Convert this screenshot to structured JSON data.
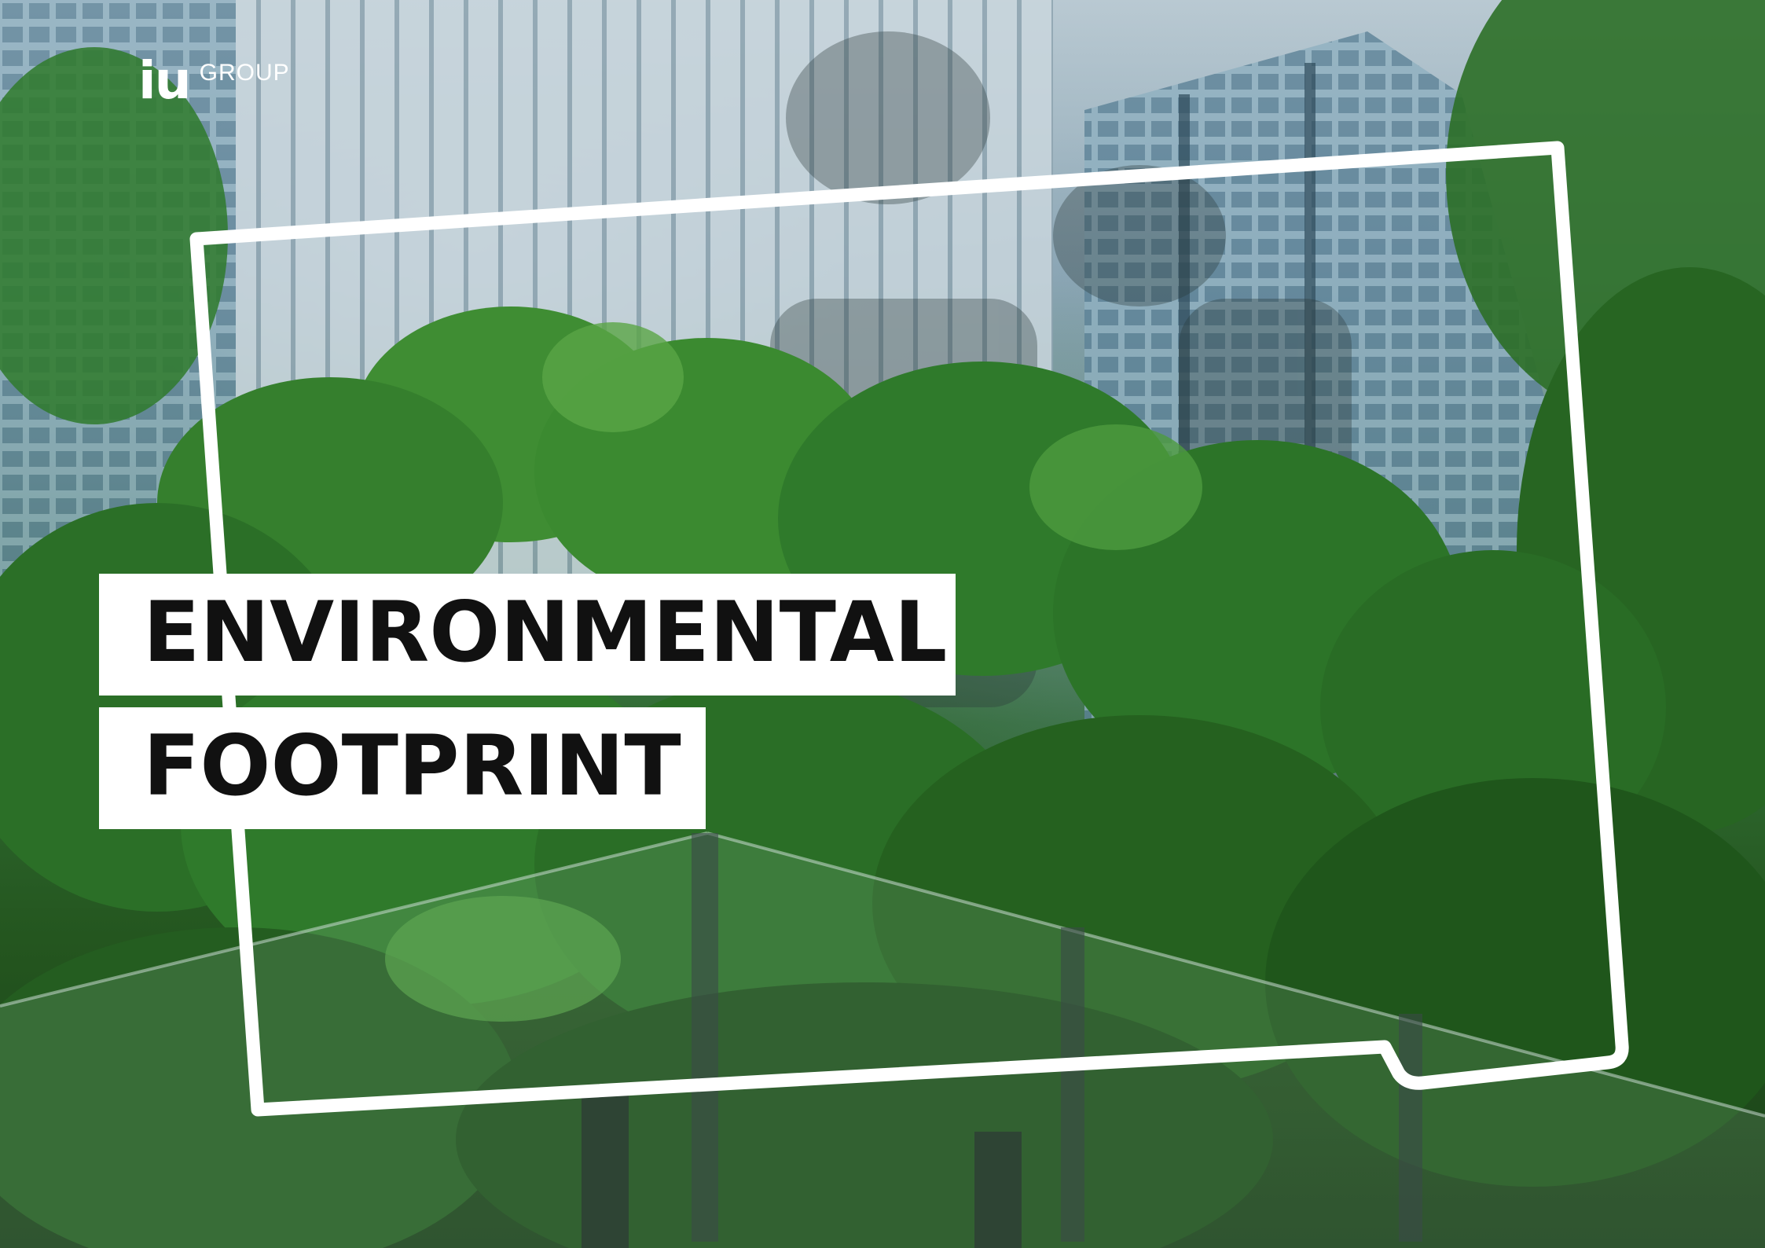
{
  "brand": {
    "logo_mark": "iu",
    "logo_word": "GROUP"
  },
  "title": {
    "line1": "ENVIRONMENTAL",
    "line2": "FOOTPRINT"
  },
  "colors": {
    "title_background": "#ffffff",
    "title_text": "#111111",
    "frame": "#ffffff",
    "foliage": "#2f6a31"
  }
}
